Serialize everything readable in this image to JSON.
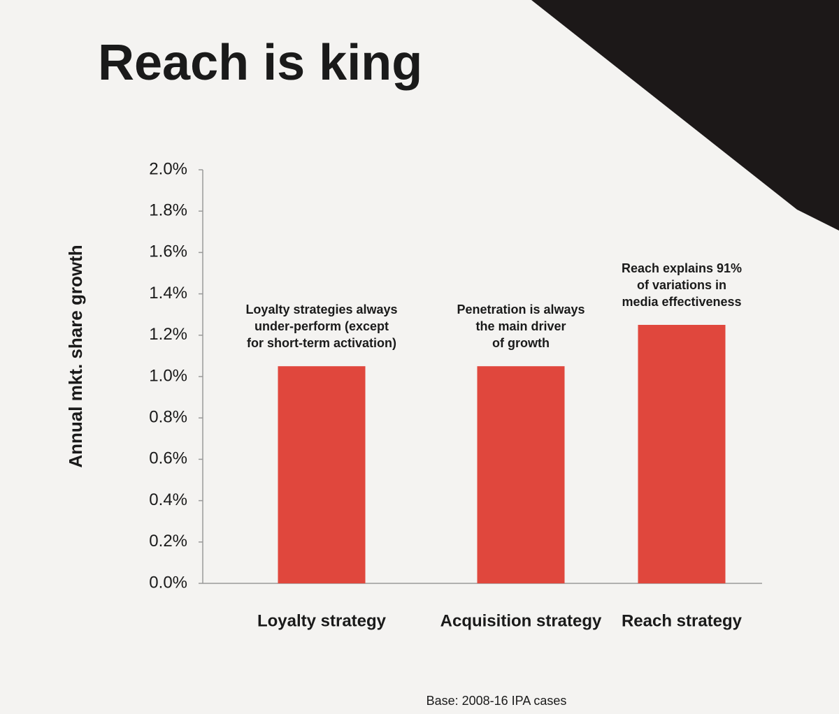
{
  "chart_data": {
    "type": "bar",
    "title": "Reach is king",
    "y_label": "Annual mkt. share growth",
    "categories": [
      "Loyalty strategy",
      "Acquisition strategy",
      "Reach strategy"
    ],
    "values": [
      1.05,
      1.05,
      1.25
    ],
    "color": "#e0473d",
    "ylim": [
      0,
      2
    ],
    "yticks": [
      {
        "value": 0,
        "label": "0.0%"
      },
      {
        "value": 0.2,
        "label": "0.2%"
      },
      {
        "value": 0.4,
        "label": "0.4%"
      },
      {
        "value": 0.6,
        "label": "0.6%"
      },
      {
        "value": 0.8,
        "label": "0.8%"
      },
      {
        "value": 1,
        "label": "1.0%"
      },
      {
        "value": 1.2,
        "label": "1.2%"
      },
      {
        "value": 1.4,
        "label": "1.4%"
      },
      {
        "value": 1.6,
        "label": "1.6%"
      },
      {
        "value": 1.8,
        "label": "1.8%"
      },
      {
        "value": 2,
        "label": "2.0%"
      }
    ],
    "annotations": [
      [
        "Loyalty strategies always",
        "under-perform (except",
        "for short-term activation)"
      ],
      [
        "Penetration is always",
        "the main driver",
        "of growth"
      ],
      [
        "Reach explains 91%",
        "of variations in",
        "media effectiveness"
      ]
    ],
    "footnote": "Base: 2008-16 IPA cases"
  }
}
